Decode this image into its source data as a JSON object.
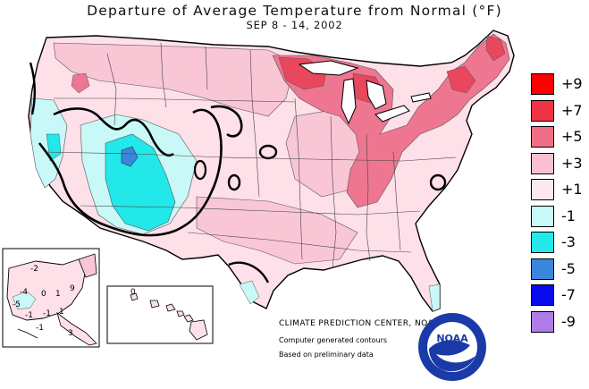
{
  "title": "Departure of Average Temperature from Normal (°F)",
  "subtitle": "SEP 8 - 14, 2002",
  "legend": {
    "items": [
      {
        "label": "+9",
        "color": "#ff0000"
      },
      {
        "label": "+7",
        "color": "#ee3344"
      },
      {
        "label": "+5",
        "color": "#ee6f85"
      },
      {
        "label": "+3",
        "color": "#f8c0d0"
      },
      {
        "label": "+1",
        "color": "#fde8ee"
      },
      {
        "label": "-1",
        "color": "#c8f8f8"
      },
      {
        "label": "-3",
        "color": "#22e8ea"
      },
      {
        "label": "-5",
        "color": "#3a86dc"
      },
      {
        "label": "-7",
        "color": "#0a0aee"
      },
      {
        "label": "-9",
        "color": "#b07ce8"
      }
    ]
  },
  "alaska_labels": [
    "-2",
    "-4",
    "0",
    "1",
    "9",
    "-5",
    "-1",
    "-1",
    "1",
    "-1",
    "3"
  ],
  "hawaii_labels": [
    "0"
  ],
  "credits": {
    "center": "CLIMATE PREDICTION CENTER, NOAA",
    "line1": "Computer generated contours",
    "line2": "Based on preliminary data"
  },
  "logo_text": "NOAA"
}
